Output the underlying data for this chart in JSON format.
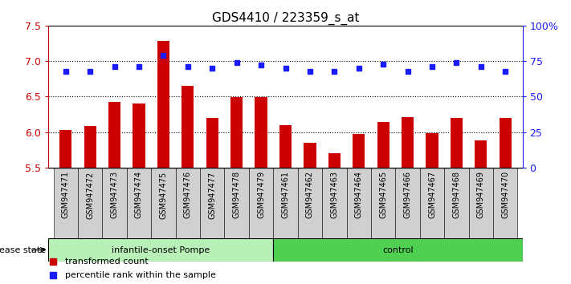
{
  "title": "GDS4410 / 223359_s_at",
  "samples": [
    "GSM947471",
    "GSM947472",
    "GSM947473",
    "GSM947474",
    "GSM947475",
    "GSM947476",
    "GSM947477",
    "GSM947478",
    "GSM947479",
    "GSM947461",
    "GSM947462",
    "GSM947463",
    "GSM947464",
    "GSM947465",
    "GSM947466",
    "GSM947467",
    "GSM947468",
    "GSM947469",
    "GSM947470"
  ],
  "transformed_count": [
    6.03,
    6.09,
    6.42,
    6.4,
    7.28,
    6.65,
    6.2,
    6.49,
    6.49,
    6.1,
    5.85,
    5.7,
    5.97,
    6.14,
    6.21,
    5.98,
    6.2,
    5.88,
    6.2
  ],
  "percentile_rank_pct": [
    68,
    68,
    71,
    71,
    79,
    71,
    70,
    74,
    72,
    70,
    68,
    68,
    70,
    73,
    68,
    71,
    74,
    71,
    68
  ],
  "groups": [
    {
      "label": "infantile-onset Pompe",
      "start": 0,
      "end": 9,
      "color": "#b8f0b8"
    },
    {
      "label": "control",
      "start": 9,
      "end": 19,
      "color": "#50d050"
    }
  ],
  "ylim_left": [
    5.5,
    7.5
  ],
  "ylim_right": [
    0,
    100
  ],
  "yticks_left": [
    5.5,
    6.0,
    6.5,
    7.0,
    7.5
  ],
  "yticks_right": [
    0,
    25,
    50,
    75,
    100
  ],
  "ytick_right_labels": [
    "0",
    "25",
    "50",
    "75",
    "100%"
  ],
  "bar_color": "#CC0000",
  "dot_color": "#1a1aff",
  "bar_width": 0.5,
  "plot_bg_color": "#ffffff",
  "xtick_bg_color": "#d0d0d0",
  "legend_items": [
    "transformed count",
    "percentile rank within the sample"
  ],
  "disease_state_label": "disease state"
}
